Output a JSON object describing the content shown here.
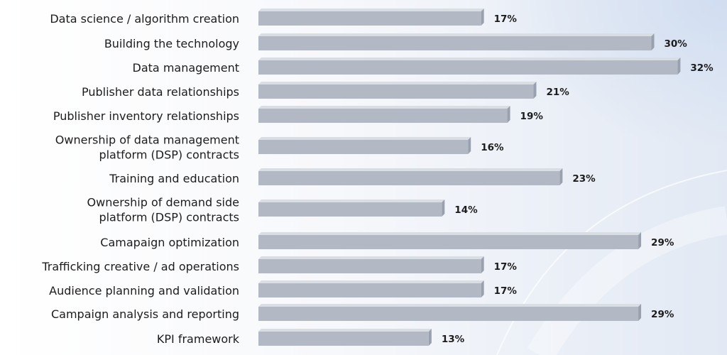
{
  "chart_data": {
    "type": "bar",
    "orientation": "horizontal",
    "categories": [
      [
        "Data science / algorithm creation"
      ],
      [
        "Building the technology"
      ],
      [
        "Data management"
      ],
      [
        "Publisher data relationships"
      ],
      [
        "Publisher inventory relationships"
      ],
      [
        "Ownership of data management",
        "platform (DSP) contracts"
      ],
      [
        "Training and education"
      ],
      [
        "Ownership of demand side",
        "platform (DSP) contracts"
      ],
      [
        "Camapaign optimization"
      ],
      [
        "Trafficking creative / ad operations"
      ],
      [
        "Audience planning and validation"
      ],
      [
        "Campaign analysis and reporting"
      ],
      [
        "KPI framework"
      ]
    ],
    "values": [
      17,
      30,
      32,
      21,
      19,
      16,
      23,
      14,
      29,
      17,
      17,
      29,
      13
    ],
    "value_labels": [
      "17%",
      "30%",
      "32%",
      "21%",
      "19%",
      "16%",
      "23%",
      "14%",
      "29%",
      "17%",
      "17%",
      "29%",
      "13%"
    ],
    "unit": "%",
    "title": "",
    "xlabel": "",
    "ylabel": "",
    "xlim": [
      0,
      32
    ],
    "grid": false,
    "legend": "none"
  },
  "colors": {
    "bar_front": "#b2b8c4",
    "bar_top": "#d9dde4",
    "bar_side": "#9aa1ae",
    "text": "#1c1c1c"
  }
}
